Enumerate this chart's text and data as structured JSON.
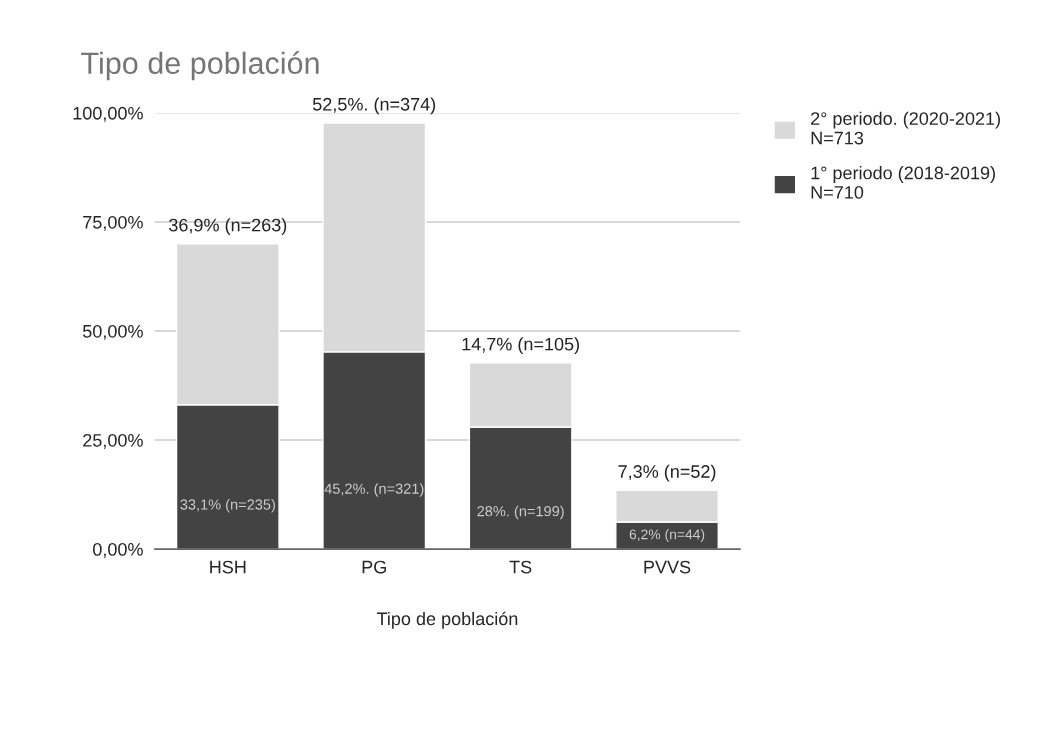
{
  "chart_data": {
    "type": "bar",
    "title": "Tipo de población",
    "xlabel": "Tipo de población",
    "stacked": true,
    "categories": [
      "HSH",
      "PG",
      "TS",
      "PVVS"
    ],
    "series": [
      {
        "name": "1° periodo (2018-2019)\nN=710",
        "color": "#434343",
        "values": [
          33.1,
          45.2,
          28,
          6.2
        ],
        "value_labels": [
          "33,1% (n=235)",
          "45,2%. (n=321)",
          "28%. (n=199)",
          "6,2% (n=44)"
        ]
      },
      {
        "name": "2° periodo. (2020-2021)\nN=713",
        "color": "#d9d9d9",
        "values": [
          36.9,
          52.5,
          14.7,
          7.3
        ],
        "value_labels": [
          "36,9% (n=263)",
          "52,5%. (n=374)",
          "14,7% (n=105)",
          "7,3% (n=52)"
        ]
      }
    ],
    "ylim": [
      0,
      100
    ],
    "yticks": [
      {
        "value": 0,
        "label": "0,00%"
      },
      {
        "value": 25,
        "label": "25,00%"
      },
      {
        "value": 50,
        "label": "50,00%"
      },
      {
        "value": 75,
        "label": "75,00%"
      },
      {
        "value": 100,
        "label": "100,00%"
      }
    ],
    "grid": "y",
    "legend": "top right"
  }
}
